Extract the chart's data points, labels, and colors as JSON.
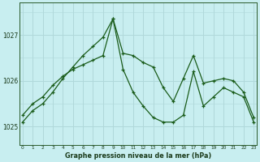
{
  "title": "Graphe pression niveau de la mer (hPa)",
  "bg_color": "#c8eef0",
  "grid_color": "#b0d8da",
  "line_color": "#1a5c1a",
  "x_ticks": [
    0,
    1,
    2,
    3,
    4,
    5,
    6,
    7,
    8,
    9,
    10,
    11,
    12,
    13,
    14,
    15,
    16,
    17,
    18,
    19,
    20,
    21,
    22,
    23
  ],
  "y_ticks": [
    1025,
    1026,
    1027
  ],
  "ylim": [
    1024.6,
    1027.7
  ],
  "xlim": [
    -0.3,
    23.3
  ],
  "series1": [
    1025.1,
    1025.35,
    1025.5,
    1025.75,
    1026.05,
    1026.3,
    1026.55,
    1026.75,
    1026.95,
    1027.35,
    1026.25,
    1025.75,
    1025.45,
    1025.2,
    1025.1,
    1025.1,
    1025.25,
    1026.2,
    1025.45,
    1025.65,
    1025.85,
    1025.75,
    1025.65,
    1025.1
  ],
  "series2": [
    1025.25,
    1025.5,
    1025.65,
    1025.9,
    1026.1,
    1026.25,
    1026.35,
    1026.45,
    1026.55,
    1027.35,
    1026.6,
    1026.55,
    1026.4,
    1026.3,
    1025.85,
    1025.55,
    1026.05,
    1026.55,
    1025.95,
    1026.0,
    1026.05,
    1026.0,
    1025.75,
    1025.2
  ]
}
